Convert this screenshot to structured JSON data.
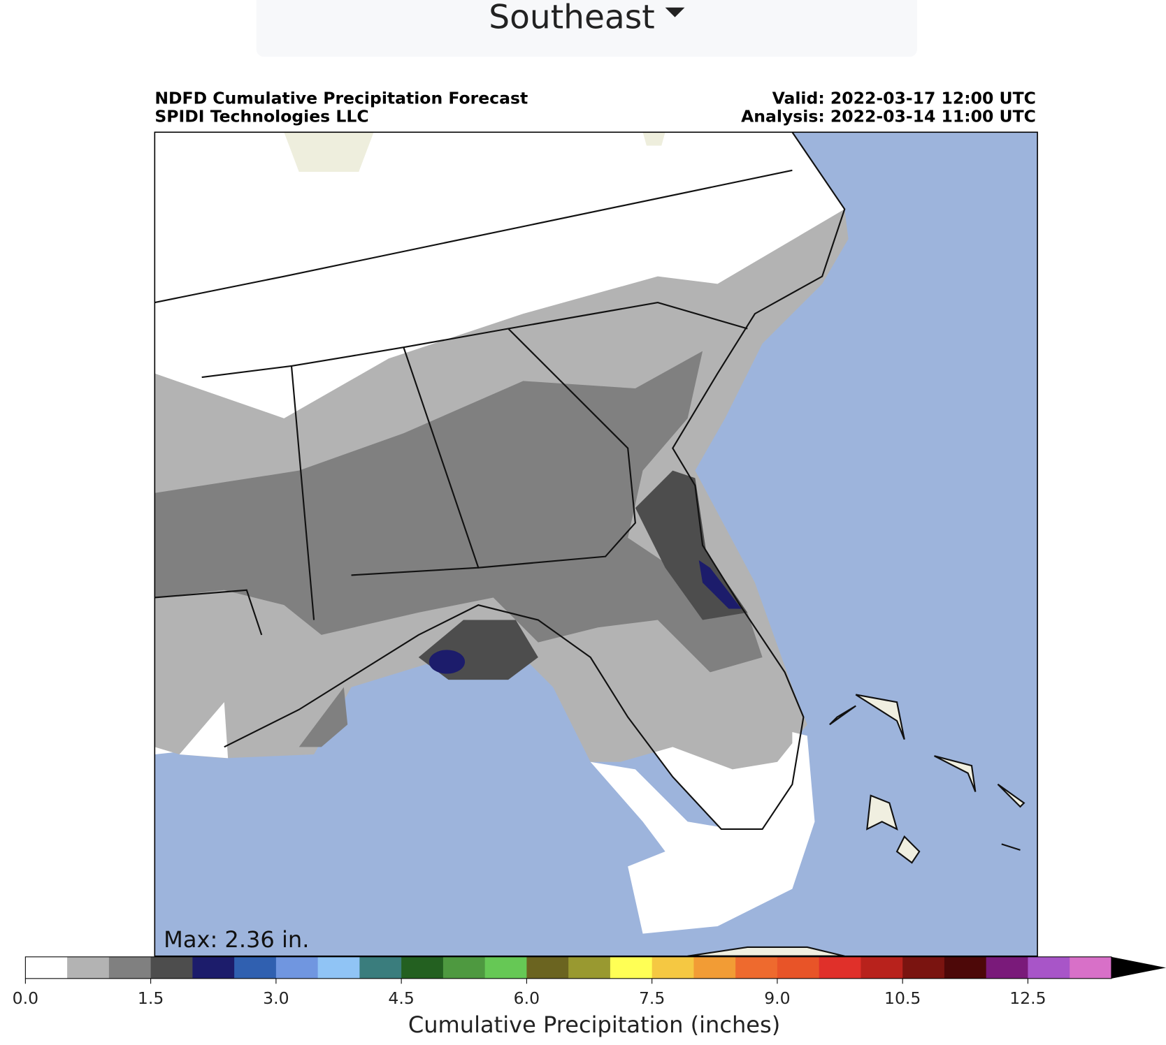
{
  "dropdown": {
    "label": "Southeast"
  },
  "map": {
    "title_lines": [
      "NDFD Cumulative Precipitation Forecast",
      "SPIDI Technologies LLC"
    ],
    "valid": "Valid: 2022-03-17 12:00 UTC",
    "analysis": "Analysis: 2022-03-14 11:00 UTC",
    "max_label": "Max: 2.36 in."
  },
  "colorbar": {
    "label": "Cumulative Precipitation (inches)",
    "colors": [
      "#ffffff",
      "#b3b3b3",
      "#808080",
      "#4d4d4d",
      "#1c1c6b",
      "#3060b0",
      "#7096e0",
      "#90c4f5",
      "#3a7d7d",
      "#236020",
      "#4e9940",
      "#66c855",
      "#6b6420",
      "#999930",
      "#ffff55",
      "#f5c842",
      "#f29c35",
      "#ee6a2e",
      "#e85428",
      "#e0302a",
      "#b8221c",
      "#7a1410",
      "#4d0808",
      "#7a1a7a",
      "#a855c8",
      "#d870c8"
    ],
    "extend_color": "#000000",
    "boundaries": [
      0,
      0.5,
      1,
      1.5,
      2,
      2.5,
      3,
      3.5,
      4,
      4.5,
      5,
      5.5,
      6,
      6.5,
      7,
      7.5,
      8,
      8.5,
      9,
      9.5,
      10,
      10.5,
      11,
      11.5,
      12.5,
      13,
      13.5
    ],
    "ticks": [
      {
        "value": 0,
        "label": "0.0"
      },
      1.5,
      {
        "value": 3,
        "label": "3.0"
      },
      4.5,
      {
        "value": 6,
        "label": "6.0"
      },
      7.5,
      {
        "value": 9,
        "label": "9.0"
      },
      10.5,
      12.5
    ]
  }
}
